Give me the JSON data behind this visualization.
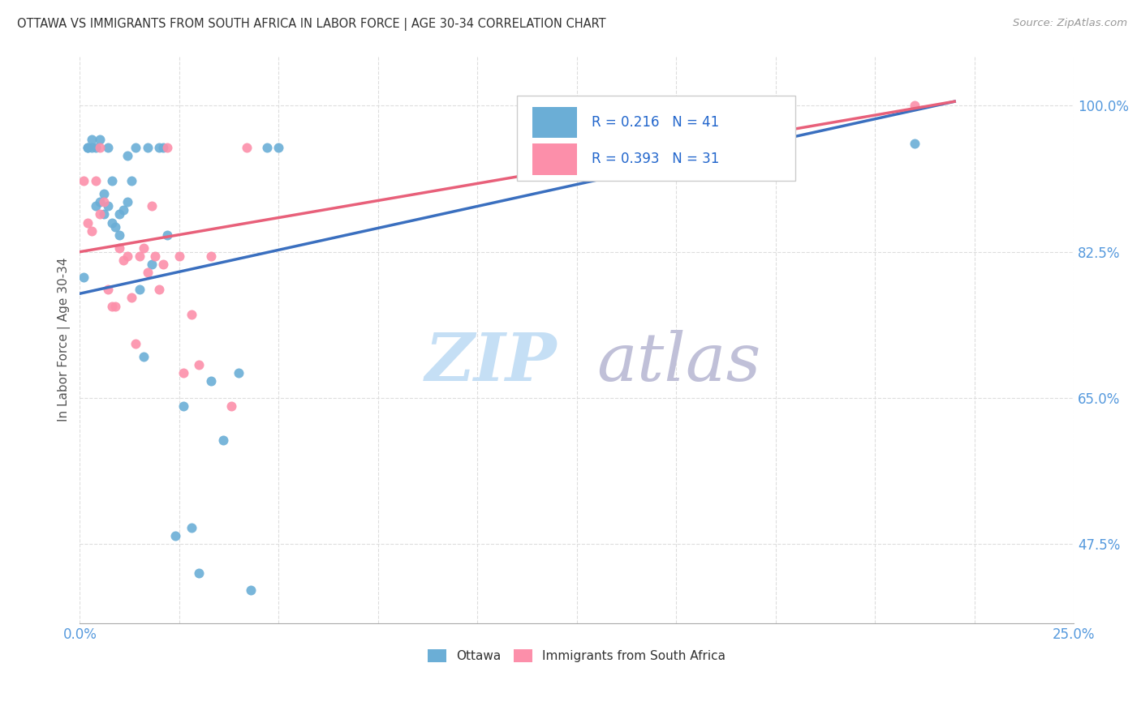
{
  "title": "OTTAWA VS IMMIGRANTS FROM SOUTH AFRICA IN LABOR FORCE | AGE 30-34 CORRELATION CHART",
  "source": "Source: ZipAtlas.com",
  "ylabel": "In Labor Force | Age 30-34",
  "xlim": [
    0.0,
    0.25
  ],
  "ylim": [
    0.38,
    1.06
  ],
  "xticks": [
    0.0,
    0.025,
    0.05,
    0.075,
    0.1,
    0.125,
    0.15,
    0.175,
    0.2,
    0.225,
    0.25
  ],
  "yticks": [
    0.475,
    0.65,
    0.825,
    1.0
  ],
  "ytick_labels": [
    "47.5%",
    "65.0%",
    "82.5%",
    "100.0%"
  ],
  "ottawa_color": "#6baed6",
  "immigrants_color": "#fc8faa",
  "trend_ottawa_color": "#3a6fbf",
  "trend_immigrants_color": "#e8607a",
  "r_ottawa": 0.216,
  "n_ottawa": 41,
  "r_immigrants": 0.393,
  "n_immigrants": 31,
  "watermark_zip": "ZIP",
  "watermark_atlas": "atlas",
  "watermark_color_zip": "#c5dff5",
  "watermark_color_atlas": "#c0c0d8",
  "trend_ottawa_x0": 0.0,
  "trend_ottawa_y0": 0.775,
  "trend_ottawa_x1": 0.22,
  "trend_ottawa_y1": 1.005,
  "trend_imm_x0": 0.0,
  "trend_imm_y0": 0.825,
  "trend_imm_x1": 0.22,
  "trend_imm_y1": 1.005,
  "ottawa_x": [
    0.001,
    0.002,
    0.002,
    0.003,
    0.003,
    0.004,
    0.004,
    0.005,
    0.005,
    0.006,
    0.006,
    0.007,
    0.007,
    0.008,
    0.008,
    0.009,
    0.01,
    0.01,
    0.011,
    0.012,
    0.012,
    0.013,
    0.014,
    0.015,
    0.016,
    0.017,
    0.018,
    0.02,
    0.021,
    0.022,
    0.024,
    0.026,
    0.028,
    0.03,
    0.033,
    0.036,
    0.04,
    0.043,
    0.047,
    0.05,
    0.21
  ],
  "ottawa_y": [
    0.795,
    0.95,
    0.95,
    0.95,
    0.96,
    0.95,
    0.88,
    0.885,
    0.96,
    0.895,
    0.87,
    0.88,
    0.95,
    0.91,
    0.86,
    0.855,
    0.87,
    0.845,
    0.875,
    0.94,
    0.885,
    0.91,
    0.95,
    0.78,
    0.7,
    0.95,
    0.81,
    0.95,
    0.95,
    0.845,
    0.485,
    0.64,
    0.495,
    0.44,
    0.67,
    0.6,
    0.68,
    0.42,
    0.95,
    0.95,
    0.955
  ],
  "immigrants_x": [
    0.001,
    0.002,
    0.003,
    0.004,
    0.005,
    0.005,
    0.006,
    0.007,
    0.008,
    0.009,
    0.01,
    0.011,
    0.012,
    0.013,
    0.014,
    0.015,
    0.016,
    0.017,
    0.018,
    0.019,
    0.02,
    0.021,
    0.022,
    0.025,
    0.026,
    0.028,
    0.03,
    0.033,
    0.038,
    0.042,
    0.21
  ],
  "immigrants_y": [
    0.91,
    0.86,
    0.85,
    0.91,
    0.87,
    0.95,
    0.885,
    0.78,
    0.76,
    0.76,
    0.83,
    0.815,
    0.82,
    0.77,
    0.715,
    0.82,
    0.83,
    0.8,
    0.88,
    0.82,
    0.78,
    0.81,
    0.95,
    0.82,
    0.68,
    0.75,
    0.69,
    0.82,
    0.64,
    0.95,
    1.0
  ]
}
